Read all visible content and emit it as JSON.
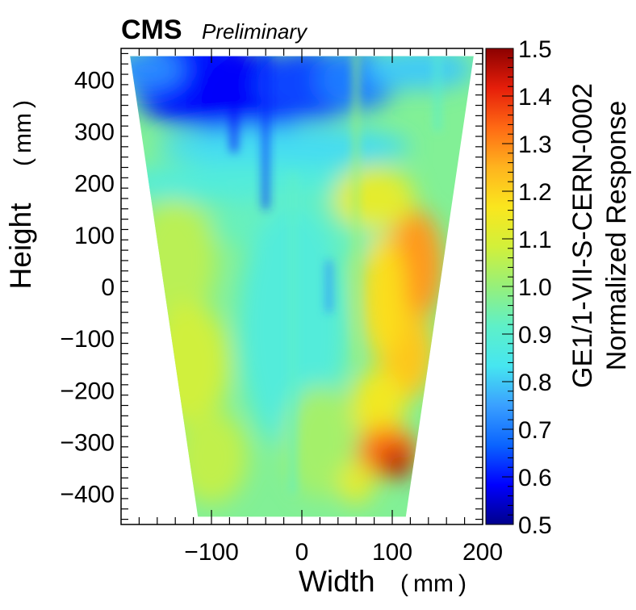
{
  "header": {
    "experiment": "CMS",
    "status": "Preliminary"
  },
  "chart_data": {
    "type": "heatmap",
    "title": "CMS Preliminary",
    "xlabel": "Width",
    "xunit": "mm",
    "ylabel": "Height",
    "yunit": "mm",
    "zlabel_line1": "GE1/1-VII-S-CERN-0002",
    "zlabel_line2": "Normalized Response",
    "xlim": [
      -200,
      200
    ],
    "ylim": [
      -460,
      460
    ],
    "zlim": [
      0.5,
      1.5
    ],
    "x_ticks": [
      -100,
      0,
      100,
      200
    ],
    "x_tick_labels": [
      "−100",
      "0",
      "100",
      "200"
    ],
    "y_ticks": [
      400,
      300,
      200,
      100,
      0,
      -100,
      -200,
      -300,
      -400
    ],
    "y_tick_labels": [
      "400",
      "300",
      "200",
      "100",
      "0",
      "−100",
      "−200",
      "−300",
      "−400"
    ],
    "z_ticks": [
      1.5,
      1.4,
      1.3,
      1.2,
      1.1,
      1.0,
      0.9,
      0.8,
      0.7,
      0.6,
      0.5
    ],
    "z_tick_labels": [
      "1.5",
      "1.4",
      "1.3",
      "1.2",
      "1.1",
      "1.0",
      "0.9",
      "0.8",
      "0.7",
      "0.6",
      "0.5"
    ],
    "colormap": [
      "#00008b",
      "#0000ff",
      "#0a64ff",
      "#3aa0ff",
      "#46e6f0",
      "#5ef0c8",
      "#96f07a",
      "#d2f03a",
      "#fae61e",
      "#ffb41e",
      "#ff6a14",
      "#e61e0a",
      "#8b0000"
    ],
    "detector_outline": {
      "top_y": 445,
      "bottom_y": -445,
      "top_x": [
        -190,
        190
      ],
      "bottom_x": [
        -115,
        115
      ]
    },
    "response_features": [
      {
        "region": "top band",
        "x_range": [
          -190,
          70
        ],
        "y_range": [
          250,
          445
        ],
        "value": 0.65
      },
      {
        "region": "lower-right hot spot",
        "x": 105,
        "y": -340,
        "value": 1.45
      },
      {
        "region": "right hot ridge",
        "x": 125,
        "y": 0,
        "value": 1.3
      },
      {
        "region": "central body",
        "x": 0,
        "y": -100,
        "value": 0.95
      }
    ]
  }
}
